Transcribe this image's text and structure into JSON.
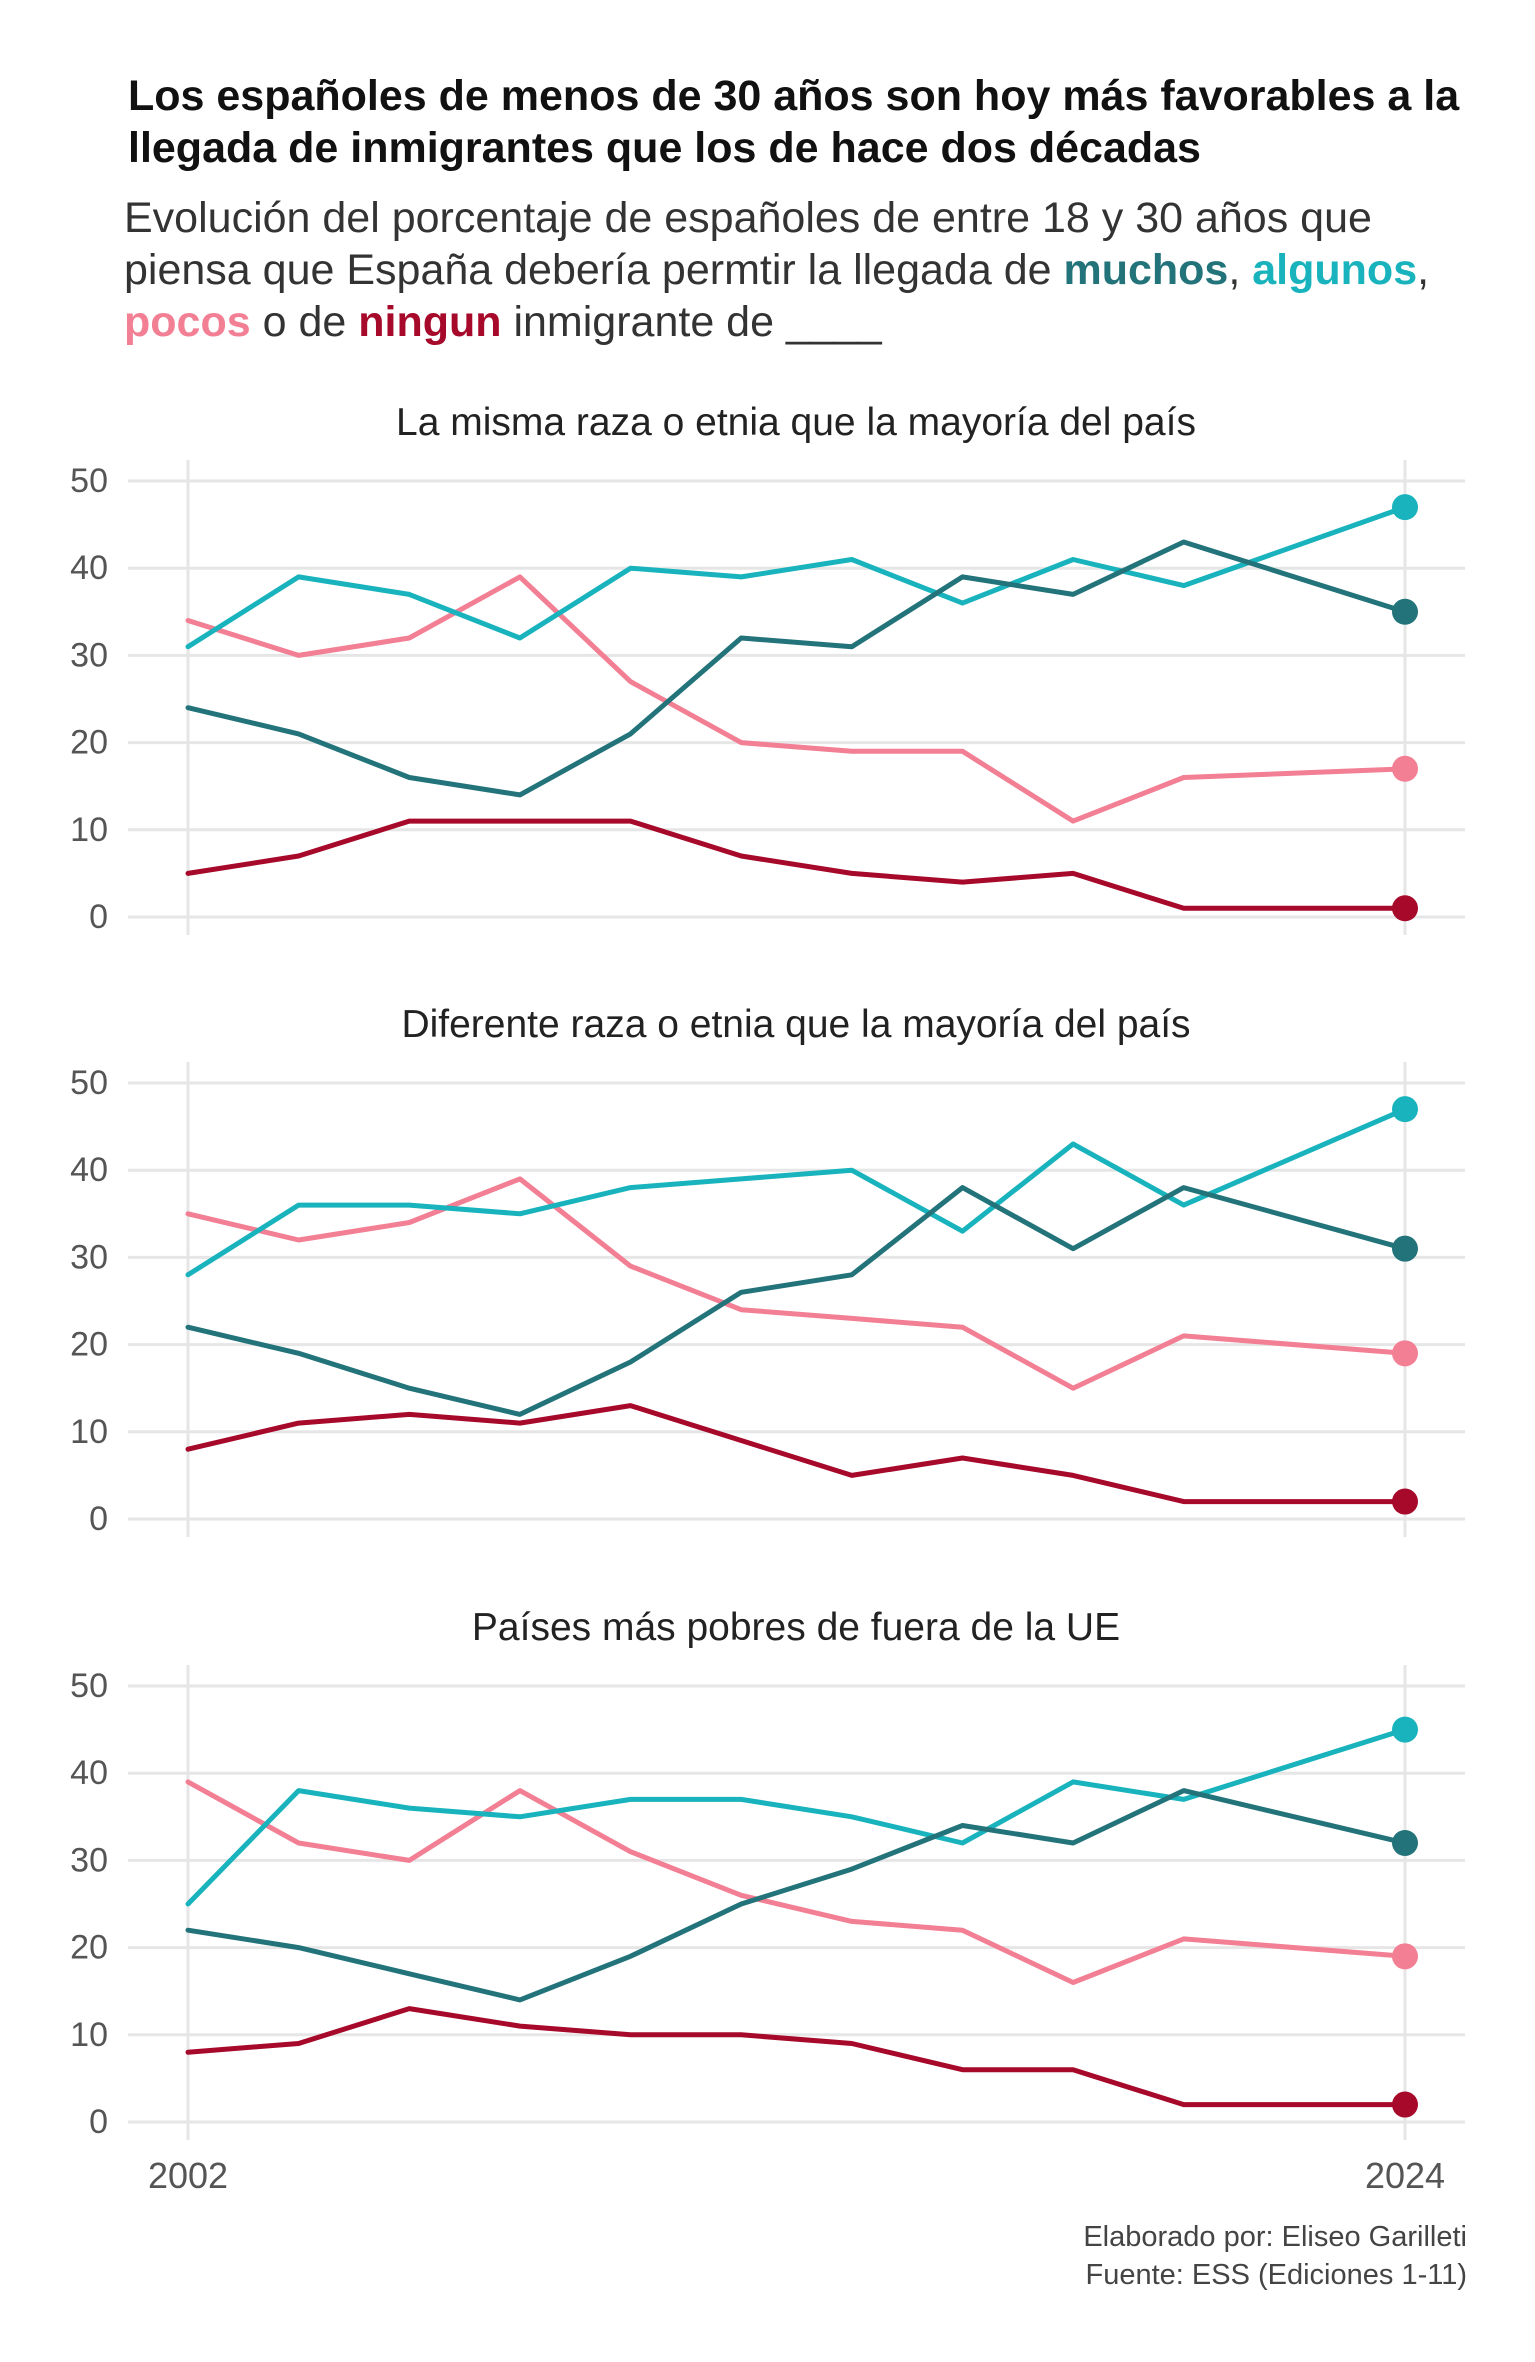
{
  "title": "Los españoles de menos de 30 años son hoy más favorables a la llegada de inmigrantes que los de hace dos décadas",
  "subtitle": {
    "part1": "Evolución del porcentaje de españoles de entre 18 y 30 años que piensa que España debería permtir la llegada de ",
    "muchos": "muchos",
    "sep1": ", ",
    "algunos": "algunos",
    "sep2": ",",
    "pocos": "pocos",
    "mid": " o de ",
    "ningun": "ningun",
    "part2": " inmigrante de ____"
  },
  "colors": {
    "muchos": "#23737a",
    "algunos": "#19b3bd",
    "pocos": "#f27f93",
    "ningun": "#a6092a",
    "grid": "#e6e6e6",
    "axis_text": "#555555"
  },
  "x_labels": [
    "2002",
    "2024"
  ],
  "chart_data": [
    {
      "type": "line",
      "title": "La misma raza o etnia que la mayoría del país",
      "x": [
        2002,
        2004,
        2006,
        2008,
        2010,
        2012,
        2014,
        2016,
        2018,
        2020,
        2024
      ],
      "ylim": [
        0,
        50
      ],
      "yticks": [
        0,
        10,
        20,
        30,
        40,
        50
      ],
      "grid": true,
      "series": [
        {
          "name": "muchos",
          "values": [
            24,
            21,
            16,
            14,
            21,
            32,
            31,
            39,
            37,
            43,
            35
          ]
        },
        {
          "name": "algunos",
          "values": [
            31,
            39,
            37,
            32,
            40,
            39,
            41,
            36,
            41,
            38,
            47
          ]
        },
        {
          "name": "pocos",
          "values": [
            34,
            30,
            32,
            39,
            27,
            20,
            19,
            19,
            11,
            16,
            17
          ]
        },
        {
          "name": "ningun",
          "values": [
            5,
            7,
            11,
            11,
            11,
            7,
            5,
            4,
            5,
            1,
            1
          ]
        }
      ]
    },
    {
      "type": "line",
      "title": "Diferente raza o etnia que la mayoría del país",
      "x": [
        2002,
        2004,
        2006,
        2008,
        2010,
        2012,
        2014,
        2016,
        2018,
        2020,
        2024
      ],
      "ylim": [
        0,
        50
      ],
      "yticks": [
        0,
        10,
        20,
        30,
        40,
        50
      ],
      "grid": true,
      "series": [
        {
          "name": "muchos",
          "values": [
            22,
            19,
            15,
            12,
            18,
            26,
            28,
            38,
            31,
            38,
            31
          ]
        },
        {
          "name": "algunos",
          "values": [
            28,
            36,
            36,
            35,
            38,
            39,
            40,
            33,
            43,
            36,
            47
          ]
        },
        {
          "name": "pocos",
          "values": [
            35,
            32,
            34,
            39,
            29,
            24,
            23,
            22,
            15,
            21,
            19
          ]
        },
        {
          "name": "ningun",
          "values": [
            8,
            11,
            12,
            11,
            13,
            9,
            5,
            7,
            5,
            2,
            2
          ]
        }
      ]
    },
    {
      "type": "line",
      "title": "Países más pobres de fuera de la UE",
      "x": [
        2002,
        2004,
        2006,
        2008,
        2010,
        2012,
        2014,
        2016,
        2018,
        2020,
        2024
      ],
      "ylim": [
        0,
        50
      ],
      "yticks": [
        0,
        10,
        20,
        30,
        40,
        50
      ],
      "grid": true,
      "series": [
        {
          "name": "muchos",
          "values": [
            22,
            20,
            17,
            14,
            19,
            25,
            29,
            34,
            32,
            38,
            32
          ]
        },
        {
          "name": "algunos",
          "values": [
            25,
            38,
            36,
            35,
            37,
            37,
            35,
            32,
            39,
            37,
            45
          ]
        },
        {
          "name": "pocos",
          "values": [
            39,
            32,
            30,
            38,
            31,
            26,
            23,
            22,
            16,
            21,
            19
          ]
        },
        {
          "name": "ningun",
          "values": [
            8,
            9,
            13,
            11,
            10,
            10,
            9,
            6,
            6,
            2,
            2
          ]
        }
      ]
    }
  ],
  "footer": {
    "author": "Elaborado por: Eliseo Garilleti",
    "source": "Fuente: ESS (Ediciones 1-11)"
  }
}
